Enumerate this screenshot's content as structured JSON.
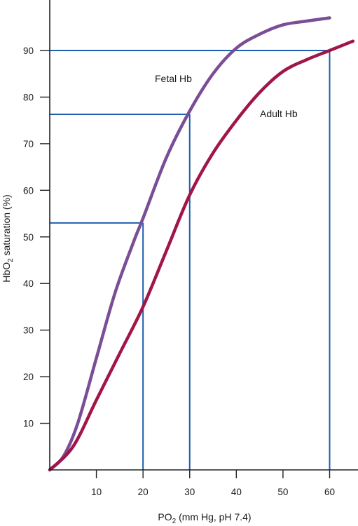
{
  "chart_data": {
    "type": "line",
    "xlabel": {
      "main": "PO",
      "sub": "2",
      "rest": " (mm Hg, pH 7.4)"
    },
    "ylabel": {
      "main": "HbO",
      "sub": "2",
      "rest": " saturation (%)"
    },
    "xlim": [
      0,
      65
    ],
    "ylim": [
      0,
      100
    ],
    "xticks": [
      10,
      20,
      30,
      40,
      50,
      60
    ],
    "yticks": [
      10,
      20,
      30,
      40,
      50,
      60,
      70,
      80,
      90
    ],
    "grid": false,
    "series": [
      {
        "name": "Fetal Hb",
        "color": "#7a4e96",
        "x": [
          0,
          3,
          6,
          10,
          14,
          18,
          20,
          25,
          30,
          35,
          40,
          45,
          50,
          55,
          60
        ],
        "y": [
          0,
          3,
          10,
          24,
          38,
          49,
          54,
          67,
          77,
          85,
          90.5,
          93.5,
          95.5,
          96.3,
          97
        ]
      },
      {
        "name": "Adult Hb",
        "color": "#a0154a",
        "x": [
          0,
          5,
          10,
          15,
          20,
          25,
          30,
          35,
          40,
          45,
          50,
          55,
          60,
          65
        ],
        "y": [
          0,
          5,
          15,
          25,
          35,
          47,
          59,
          68,
          75,
          81,
          85.5,
          88,
          90,
          92
        ]
      }
    ],
    "reference_lines": {
      "color": "#1f5fae",
      "items": [
        {
          "x": 20,
          "y": 53
        },
        {
          "x": 30,
          "y": 76.3
        },
        {
          "x": 60,
          "y": 90
        }
      ]
    }
  }
}
